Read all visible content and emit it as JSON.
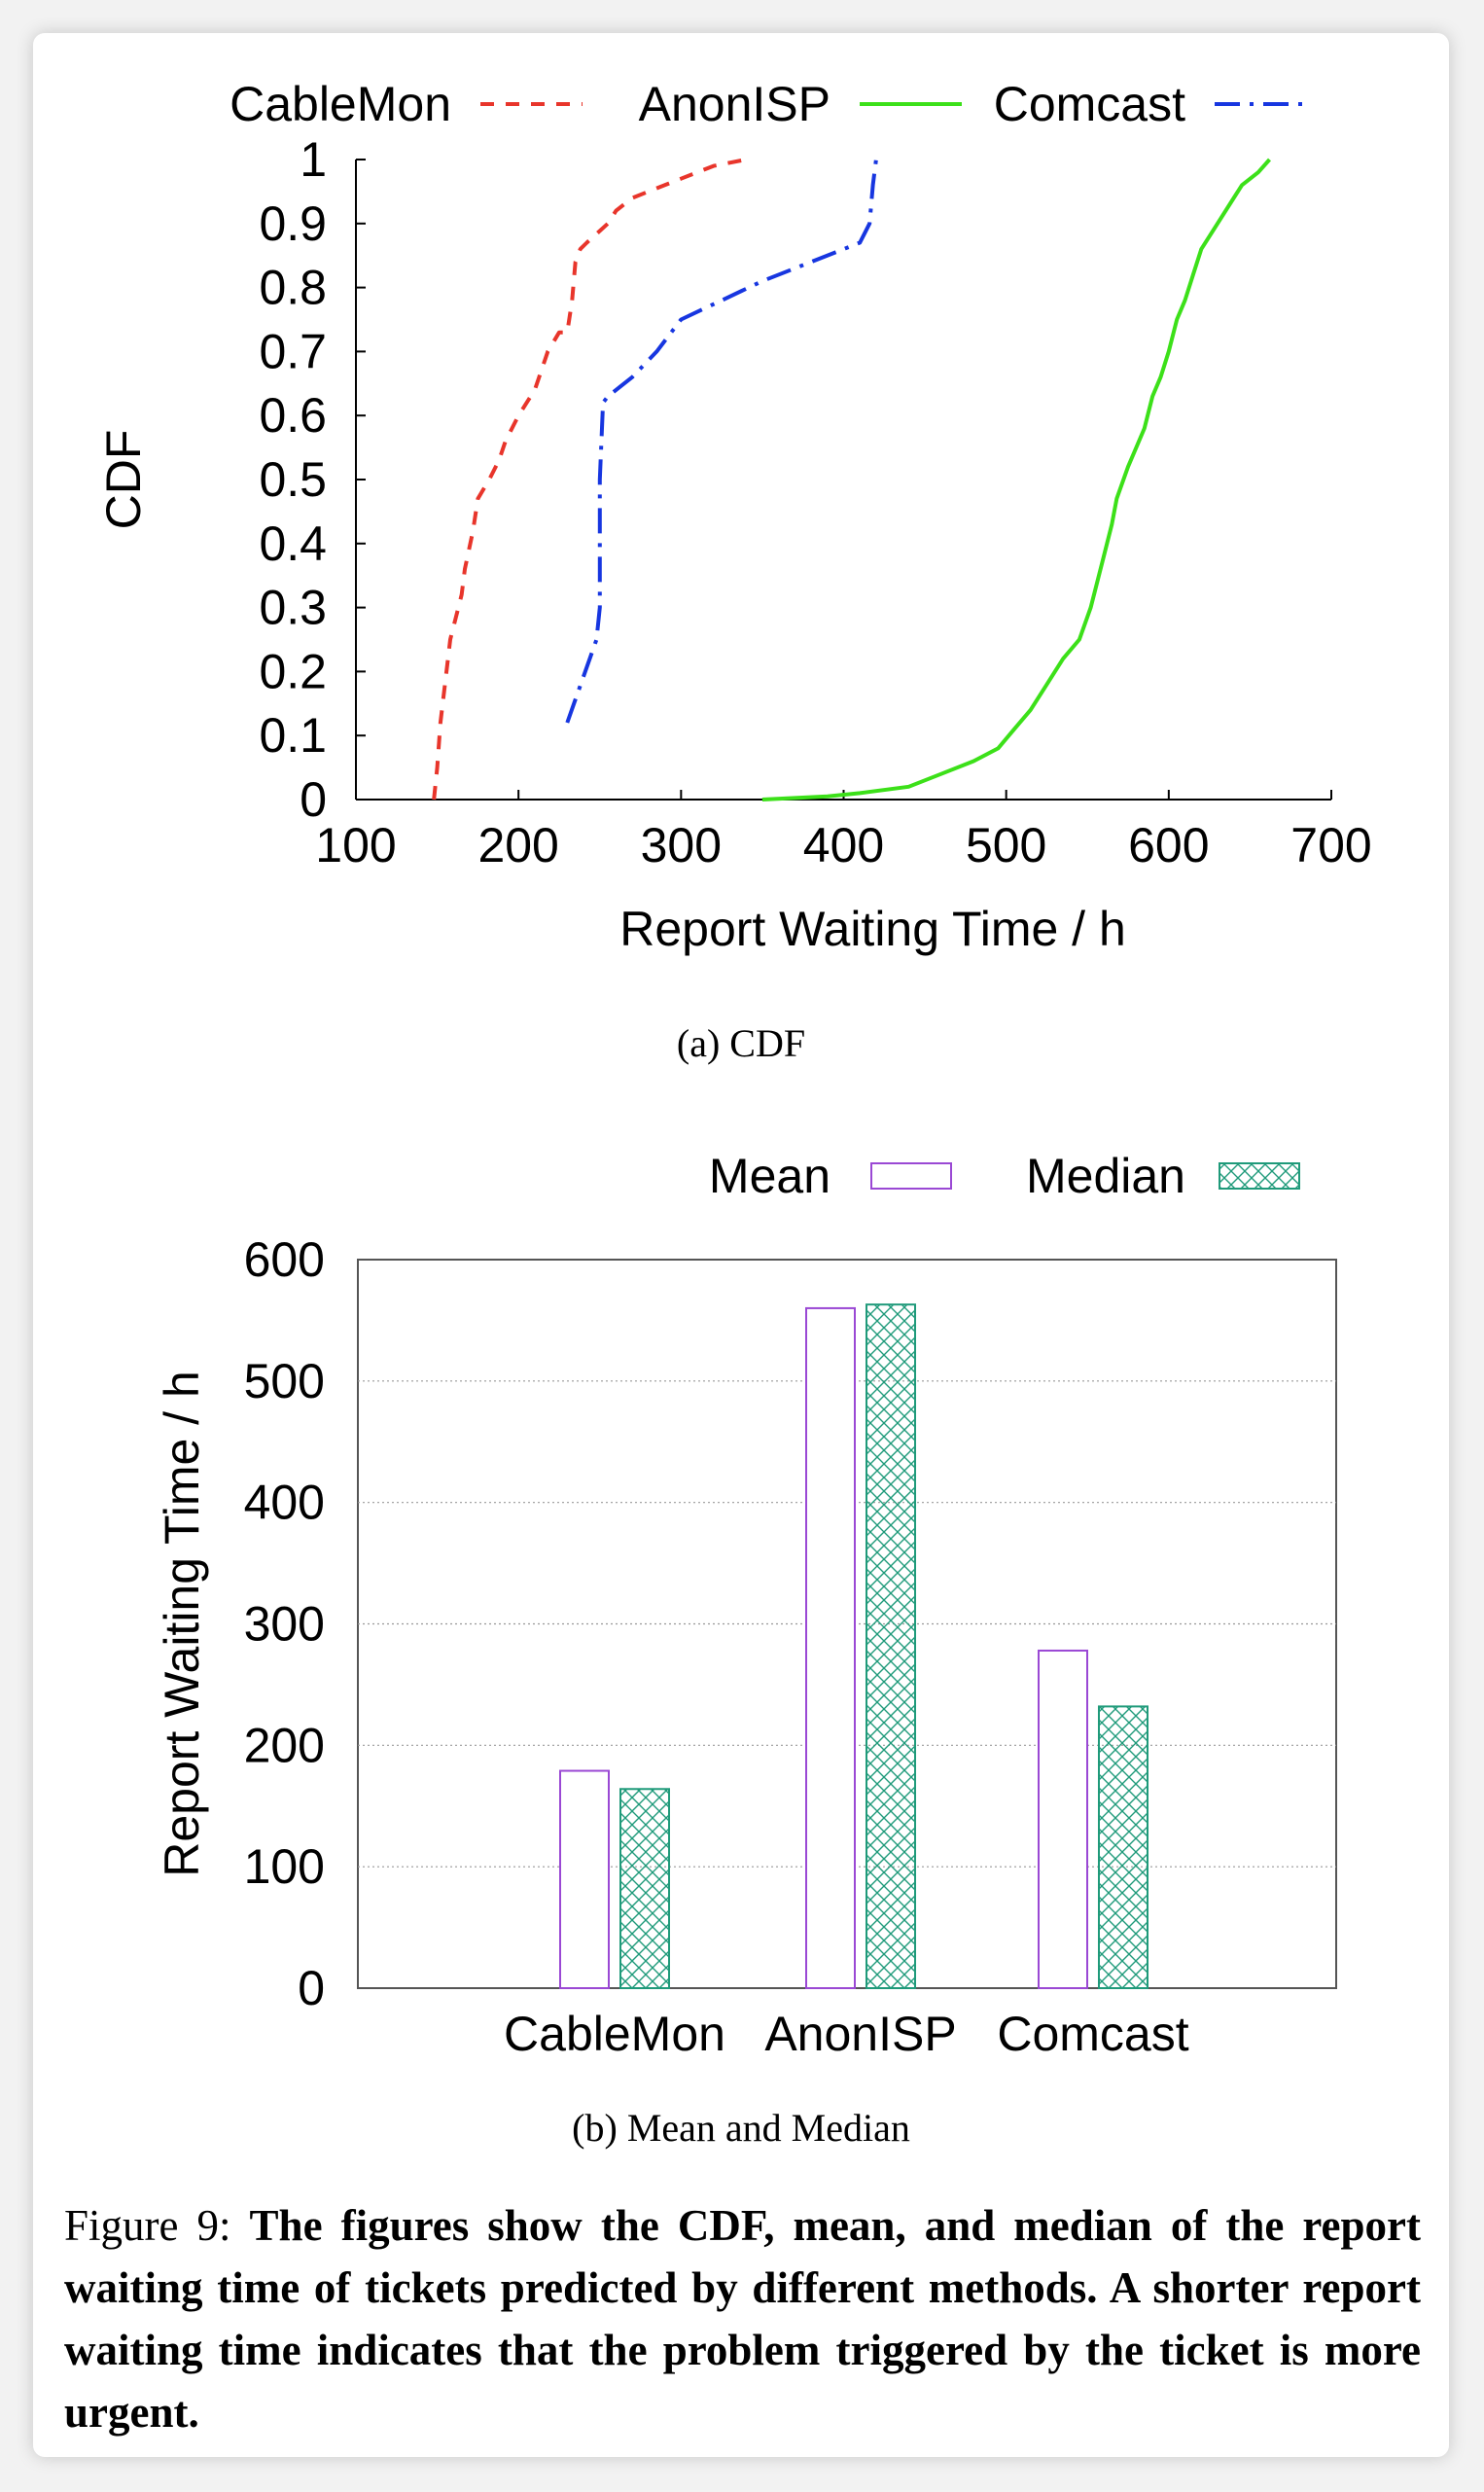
{
  "chart_data": [
    {
      "type": "line",
      "subcaption": "(a)  CDF",
      "xlabel": "Report Waiting Time / h",
      "ylabel": "CDF",
      "xlim": [
        100,
        700
      ],
      "ylim": [
        0,
        1
      ],
      "xticks": [
        "100",
        "200",
        "300",
        "400",
        "500",
        "600",
        "700"
      ],
      "yticks": [
        "0",
        "0.1",
        "0.2",
        "0.3",
        "0.4",
        "0.5",
        "0.6",
        "0.7",
        "0.8",
        "0.9",
        "1"
      ],
      "legend_placement": "top",
      "series": [
        {
          "name": "CableMon",
          "color": "#e8352b",
          "dash": "dashed",
          "x": [
            148,
            150,
            152,
            158,
            165,
            167,
            172,
            175,
            182,
            188,
            192,
            200,
            210,
            218,
            225,
            230,
            233,
            235,
            238,
            242,
            255,
            260,
            270,
            300,
            320,
            340
          ],
          "y": [
            0,
            0.05,
            0.12,
            0.25,
            0.32,
            0.36,
            0.42,
            0.47,
            0.5,
            0.53,
            0.56,
            0.6,
            0.64,
            0.7,
            0.73,
            0.73,
            0.78,
            0.84,
            0.86,
            0.87,
            0.9,
            0.92,
            0.94,
            0.97,
            0.99,
            1.0
          ]
        },
        {
          "name": "AnonISP",
          "color": "#3ce019",
          "dash": "solid",
          "x": [
            350,
            390,
            410,
            440,
            460,
            480,
            495,
            505,
            515,
            525,
            535,
            545,
            552,
            560,
            565,
            568,
            575,
            580,
            585,
            590,
            595,
            600,
            605,
            610,
            615,
            620,
            630,
            640,
            645,
            655,
            662
          ],
          "y": [
            0,
            0.005,
            0.01,
            0.02,
            0.04,
            0.06,
            0.08,
            0.11,
            0.14,
            0.18,
            0.22,
            0.25,
            0.3,
            0.38,
            0.43,
            0.47,
            0.52,
            0.55,
            0.58,
            0.63,
            0.66,
            0.7,
            0.75,
            0.78,
            0.82,
            0.86,
            0.9,
            0.94,
            0.96,
            0.98,
            1.0
          ]
        },
        {
          "name": "Comcast",
          "color": "#1736e0",
          "dash": "dashdot",
          "x": [
            230,
            248,
            250,
            250,
            252,
            255,
            270,
            285,
            300,
            325,
            350,
            380,
            400,
            410,
            416,
            418,
            420
          ],
          "y": [
            0.12,
            0.25,
            0.3,
            0.5,
            0.62,
            0.63,
            0.66,
            0.7,
            0.75,
            0.78,
            0.81,
            0.84,
            0.86,
            0.87,
            0.9,
            0.96,
            1.0
          ]
        }
      ]
    },
    {
      "type": "bar",
      "subcaption": "(b)  Mean and Median",
      "ylabel": "Report Waiting Time / h",
      "xlabel": "",
      "ylim": [
        0,
        600
      ],
      "yticks": [
        "0",
        "100",
        "200",
        "300",
        "400",
        "500",
        "600"
      ],
      "grid": true,
      "legend_placement": "top",
      "categories": [
        "CableMon",
        "AnonISP",
        "Comcast"
      ],
      "series": [
        {
          "name": "Mean",
          "color": "#9a48d4",
          "pattern": "outline",
          "values": [
            179,
            560,
            278
          ]
        },
        {
          "name": "Median",
          "color": "#1f9a7a",
          "pattern": "crosshatch",
          "values": [
            164,
            563,
            232
          ]
        }
      ]
    }
  ],
  "caption": {
    "lead": "Figure 9:",
    "body": "The figures show the CDF, mean, and median of the report waiting time of tickets predicted by different methods. A shorter report waiting time indicates that the problem triggered by the ticket is more urgent."
  }
}
